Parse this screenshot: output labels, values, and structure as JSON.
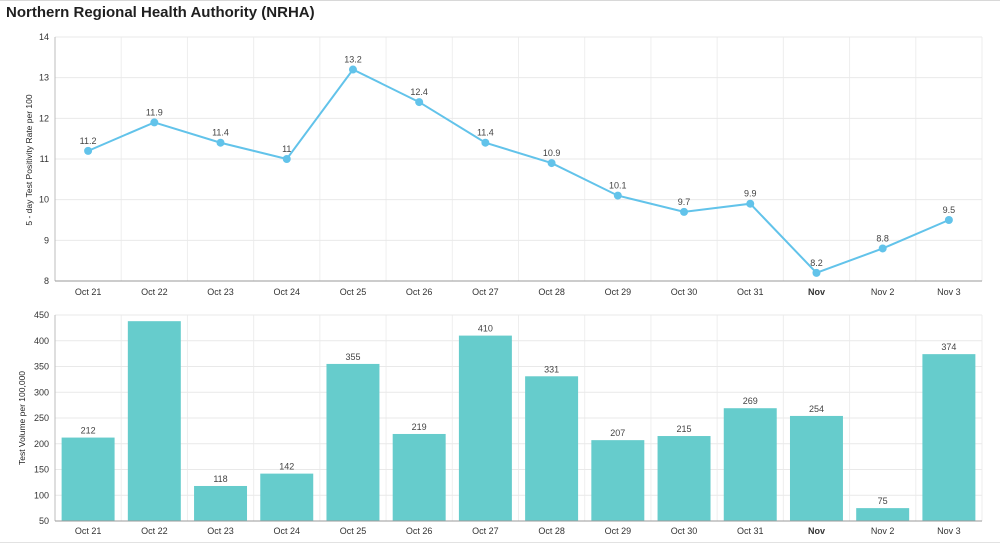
{
  "header": {
    "title": "Northern Regional Health Authority (NRHA)"
  },
  "chart_data": [
    {
      "type": "line",
      "ylabel": "5 - day Test Positivity Rate per 100",
      "categories": [
        "Oct 21",
        "Oct 22",
        "Oct 23",
        "Oct 24",
        "Oct 25",
        "Oct 26",
        "Oct 27",
        "Oct 28",
        "Oct 29",
        "Oct 30",
        "Oct 31",
        "Nov",
        "Nov 2",
        "Nov 3"
      ],
      "values": [
        11.2,
        11.9,
        11.4,
        11,
        13.2,
        12.4,
        11.4,
        10.9,
        10.1,
        9.7,
        9.9,
        8.2,
        8.8,
        9.5
      ],
      "ylim": [
        8,
        14
      ],
      "yticks": [
        8,
        9,
        10,
        11,
        12,
        13,
        14
      ],
      "color": "#62c3ea",
      "grid": true
    },
    {
      "type": "bar",
      "ylabel": "Test Volume per 100,000",
      "categories": [
        "Oct 21",
        "Oct 22",
        "Oct 23",
        "Oct 24",
        "Oct 25",
        "Oct 26",
        "Oct 27",
        "Oct 28",
        "Oct 29",
        "Oct 30",
        "Oct 31",
        "Nov",
        "Nov 2",
        "Nov 3"
      ],
      "values": [
        212,
        438,
        118,
        142,
        355,
        219,
        410,
        331,
        207,
        215,
        269,
        254,
        75,
        374
      ],
      "labels": [
        "212",
        "",
        "118",
        "142",
        "355",
        "219",
        "410",
        "331",
        "207",
        "215",
        "269",
        "254",
        "75",
        "374"
      ],
      "ylim": [
        50,
        450
      ],
      "yticks": [
        50,
        100,
        150,
        200,
        250,
        300,
        350,
        400,
        450
      ],
      "color": "#66cccc",
      "grid": true
    }
  ]
}
